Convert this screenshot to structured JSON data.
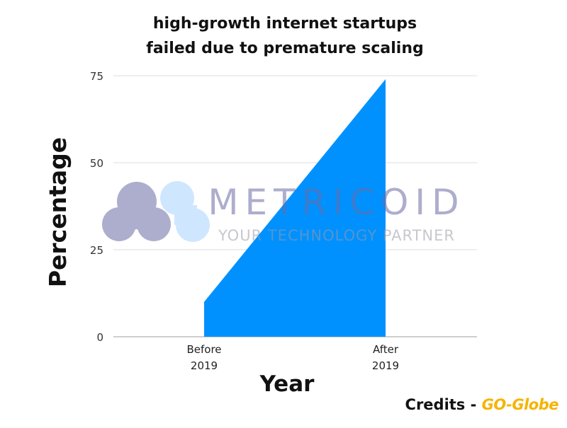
{
  "chart_data": {
    "type": "area",
    "title_lines": [
      "high-growth internet startups",
      "failed due to premature scaling"
    ],
    "xlabel": "Year",
    "ylabel": "Percentage",
    "categories": [
      [
        "Before",
        "2019"
      ],
      [
        "After",
        "2019"
      ]
    ],
    "values": [
      10,
      74
    ],
    "yticks": [
      0,
      25,
      50,
      75
    ],
    "ylim": [
      0,
      75
    ],
    "grid": true,
    "legend": "none",
    "fill_color": "#0091ff"
  },
  "watermark": {
    "name": "METRICOID",
    "tagline": "YOUR TECHNOLOGY PARTNER"
  },
  "credits": {
    "label": "Credits -",
    "brand": "GO-Globe",
    "brand_color": "#f5b400"
  }
}
